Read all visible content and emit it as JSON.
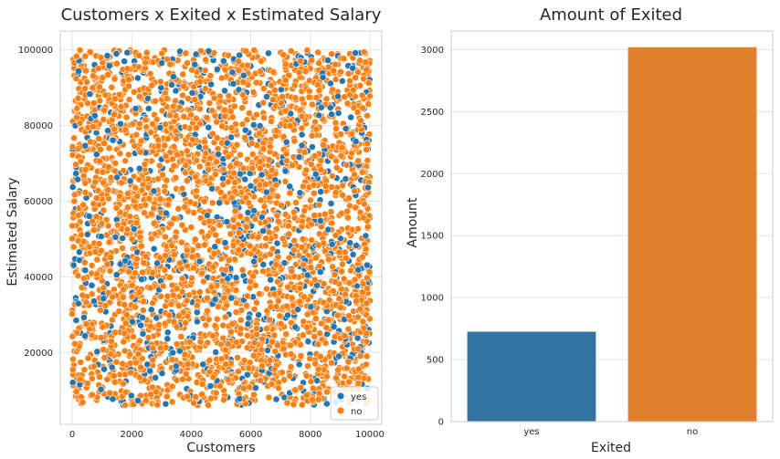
{
  "chart_data": [
    {
      "type": "scatter",
      "title": "Customers x Exited x Estimated Salary",
      "xlabel": "Customers",
      "ylabel": "Estimated Salary",
      "xlim": [
        -400,
        10400
      ],
      "ylim": [
        1000,
        105000
      ],
      "xticks": [
        0,
        2000,
        4000,
        6000,
        8000,
        10000
      ],
      "yticks": [
        20000,
        40000,
        60000,
        80000,
        100000
      ],
      "grid": true,
      "legend_position": "bottom-right",
      "x_range": [
        0,
        10000
      ],
      "y_range": [
        6000,
        100000
      ],
      "series": [
        {
          "name": "yes",
          "color": "#1f77b4",
          "approx_count": 720
        },
        {
          "name": "no",
          "color": "#ff7f0e",
          "approx_count": 3020
        }
      ]
    },
    {
      "type": "bar",
      "title": "Amount of Exited",
      "xlabel": "Exited",
      "ylabel": "Amount",
      "categories": [
        "yes",
        "no"
      ],
      "values": [
        725,
        3020
      ],
      "colors": [
        "#3274a1",
        "#e1812c"
      ],
      "ylim": [
        0,
        3150
      ],
      "yticks": [
        0,
        500,
        1000,
        1500,
        2000,
        2500,
        3000
      ],
      "grid": true
    }
  ]
}
